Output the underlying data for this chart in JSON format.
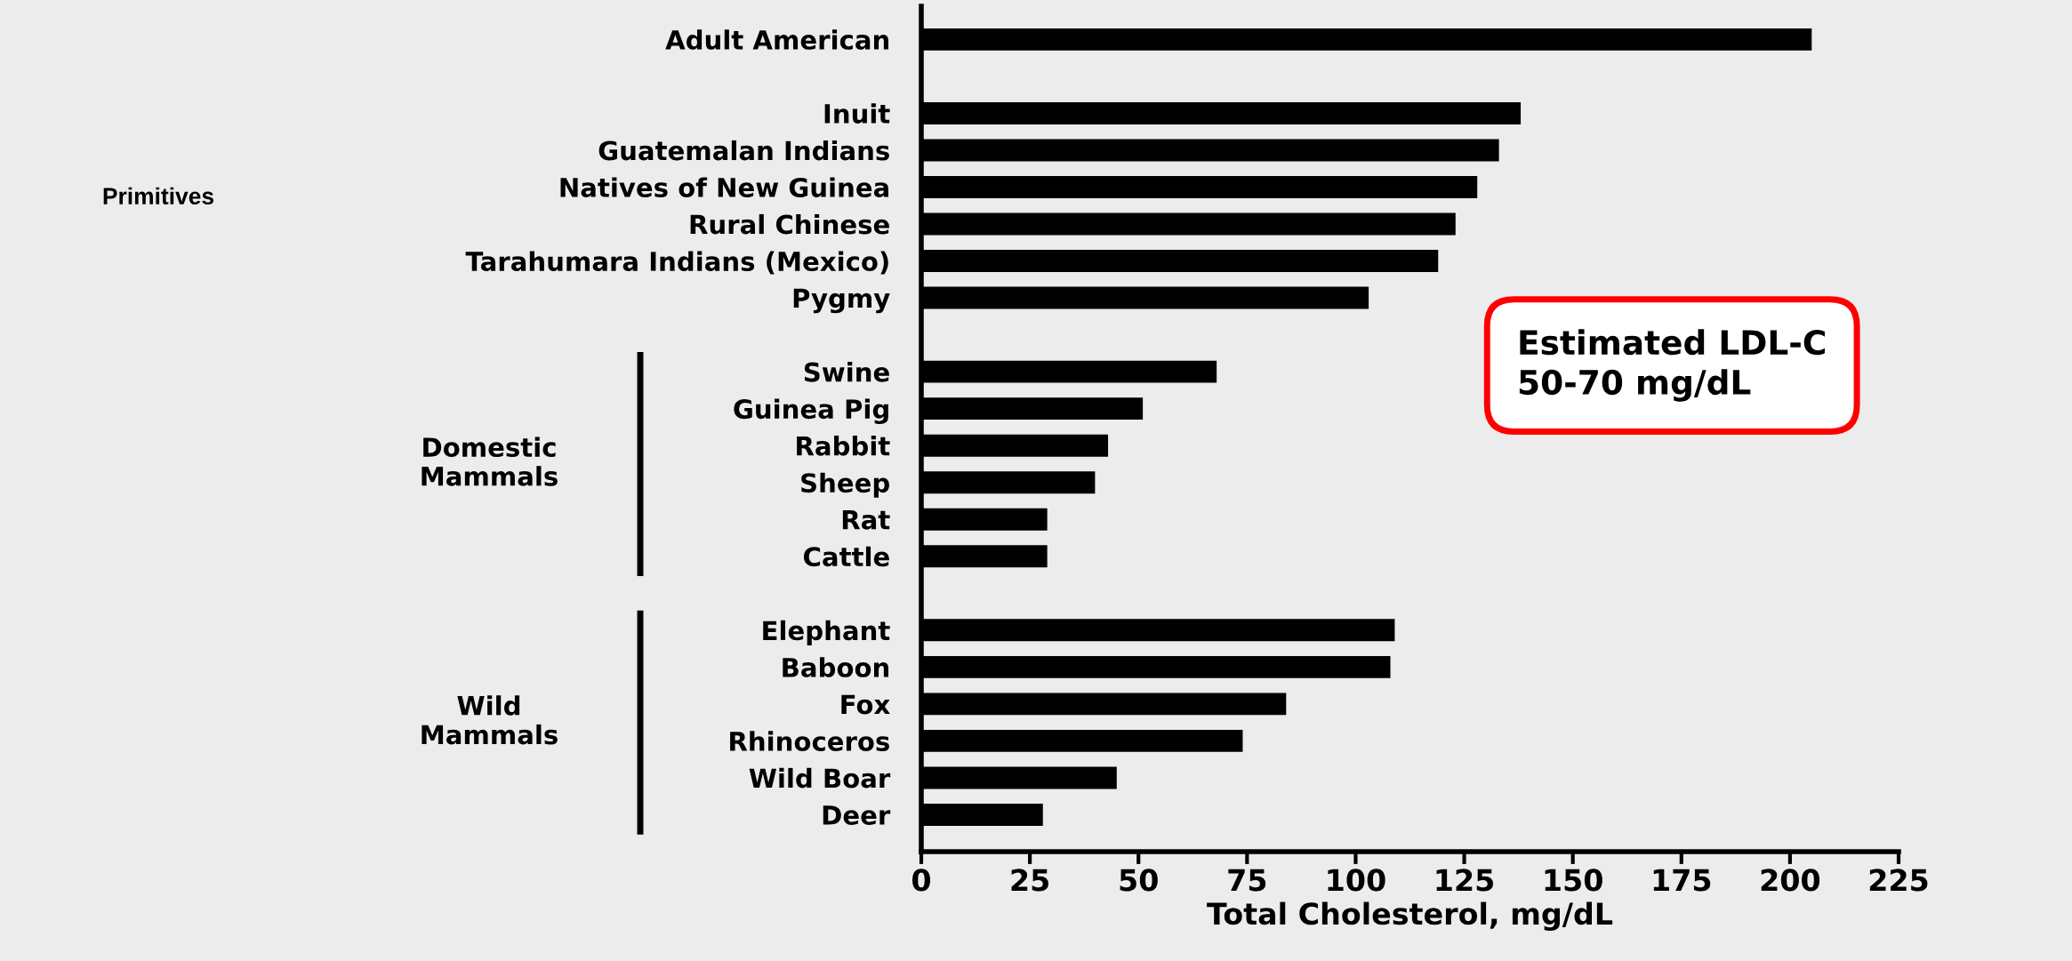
{
  "chart_data": {
    "type": "bar",
    "orientation": "horizontal",
    "categories": [
      "Adult American",
      null,
      "Inuit",
      "Guatemalan Indians",
      "Natives of New Guinea",
      "Rural Chinese",
      "Tarahumara Indians (Mexico)",
      "Pygmy",
      null,
      "Swine",
      "Guinea Pig",
      "Rabbit",
      "Sheep",
      "Rat",
      "Cattle",
      null,
      "Elephant",
      "Baboon",
      "Fox",
      "Rhinoceros",
      "Wild Boar",
      "Deer"
    ],
    "values": [
      205,
      null,
      138,
      133,
      128,
      123,
      119,
      103,
      null,
      68,
      51,
      43,
      40,
      29,
      29,
      null,
      109,
      108,
      84,
      74,
      45,
      28
    ],
    "color": "#000000",
    "xlim": [
      0,
      225
    ],
    "xticks": [
      0,
      25,
      50,
      75,
      100,
      125,
      150,
      175,
      200,
      225
    ],
    "xlabel": "Total Cholesterol, mg/dL",
    "annotations": [
      "Primitives",
      "Domestic\nMammals",
      "Wild\nMammals",
      "Estimated LDL-C\n50-70 mg/dL"
    ]
  }
}
